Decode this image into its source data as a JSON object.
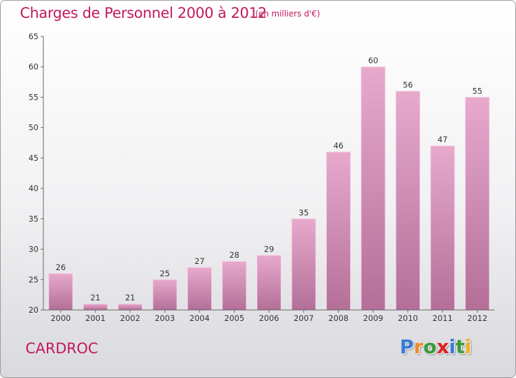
{
  "header": {
    "title": "Charges de Personnel 2000 à 2012",
    "subtitle": "(en milliers d'€)"
  },
  "footer": {
    "place": "CARDROC",
    "logo_letters": [
      {
        "char": "P",
        "color": "#3a7bd5"
      },
      {
        "char": "r",
        "color": "#f08a24"
      },
      {
        "char": "o",
        "color": "#3a9a3a"
      },
      {
        "char": "x",
        "color": "#e02020"
      },
      {
        "char": "i",
        "color": "#3a7bd5"
      },
      {
        "char": "t",
        "color": "#3a9a3a"
      },
      {
        "char": "i",
        "color": "#f0b020"
      }
    ]
  },
  "chart_data": {
    "type": "bar",
    "categories": [
      "2000",
      "2001",
      "2002",
      "2003",
      "2004",
      "2005",
      "2006",
      "2007",
      "2008",
      "2009",
      "2010",
      "2011",
      "2012"
    ],
    "values": [
      26,
      21,
      21,
      25,
      27,
      28,
      29,
      35,
      46,
      60,
      56,
      47,
      55
    ],
    "ylim": [
      20,
      65
    ],
    "yticks": [
      20,
      25,
      30,
      35,
      40,
      45,
      50,
      55,
      60,
      65
    ],
    "grid": false,
    "data_labels": true,
    "colors": {
      "bar_top": "#e8a9cd",
      "bar_bottom": "#b36f98",
      "axis": "#666666",
      "text": "#333333"
    }
  }
}
